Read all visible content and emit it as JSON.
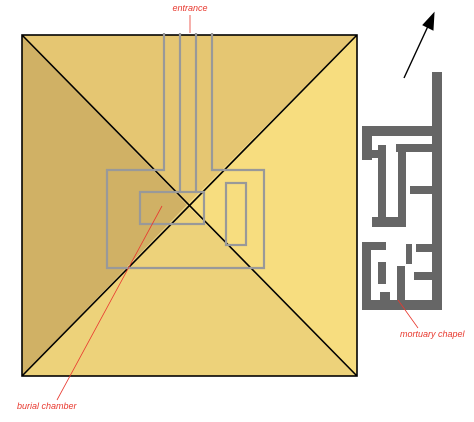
{
  "labels": {
    "entrance": "entrance",
    "burial_chamber": "burial chamber",
    "mortuary_chapel": "mortuary chapel"
  },
  "colors": {
    "face_left": "#d0b165",
    "face_top": "#e5c672",
    "face_right": "#f7dd7f",
    "face_bottom": "#edd27a",
    "outline": "#000000",
    "passages": "#999999",
    "chapel": "#666666",
    "label_text": "#e8392f",
    "leader_line": "#e8392f",
    "north_arrow": "#000000"
  },
  "icons": {
    "north": "north-arrow-icon"
  }
}
